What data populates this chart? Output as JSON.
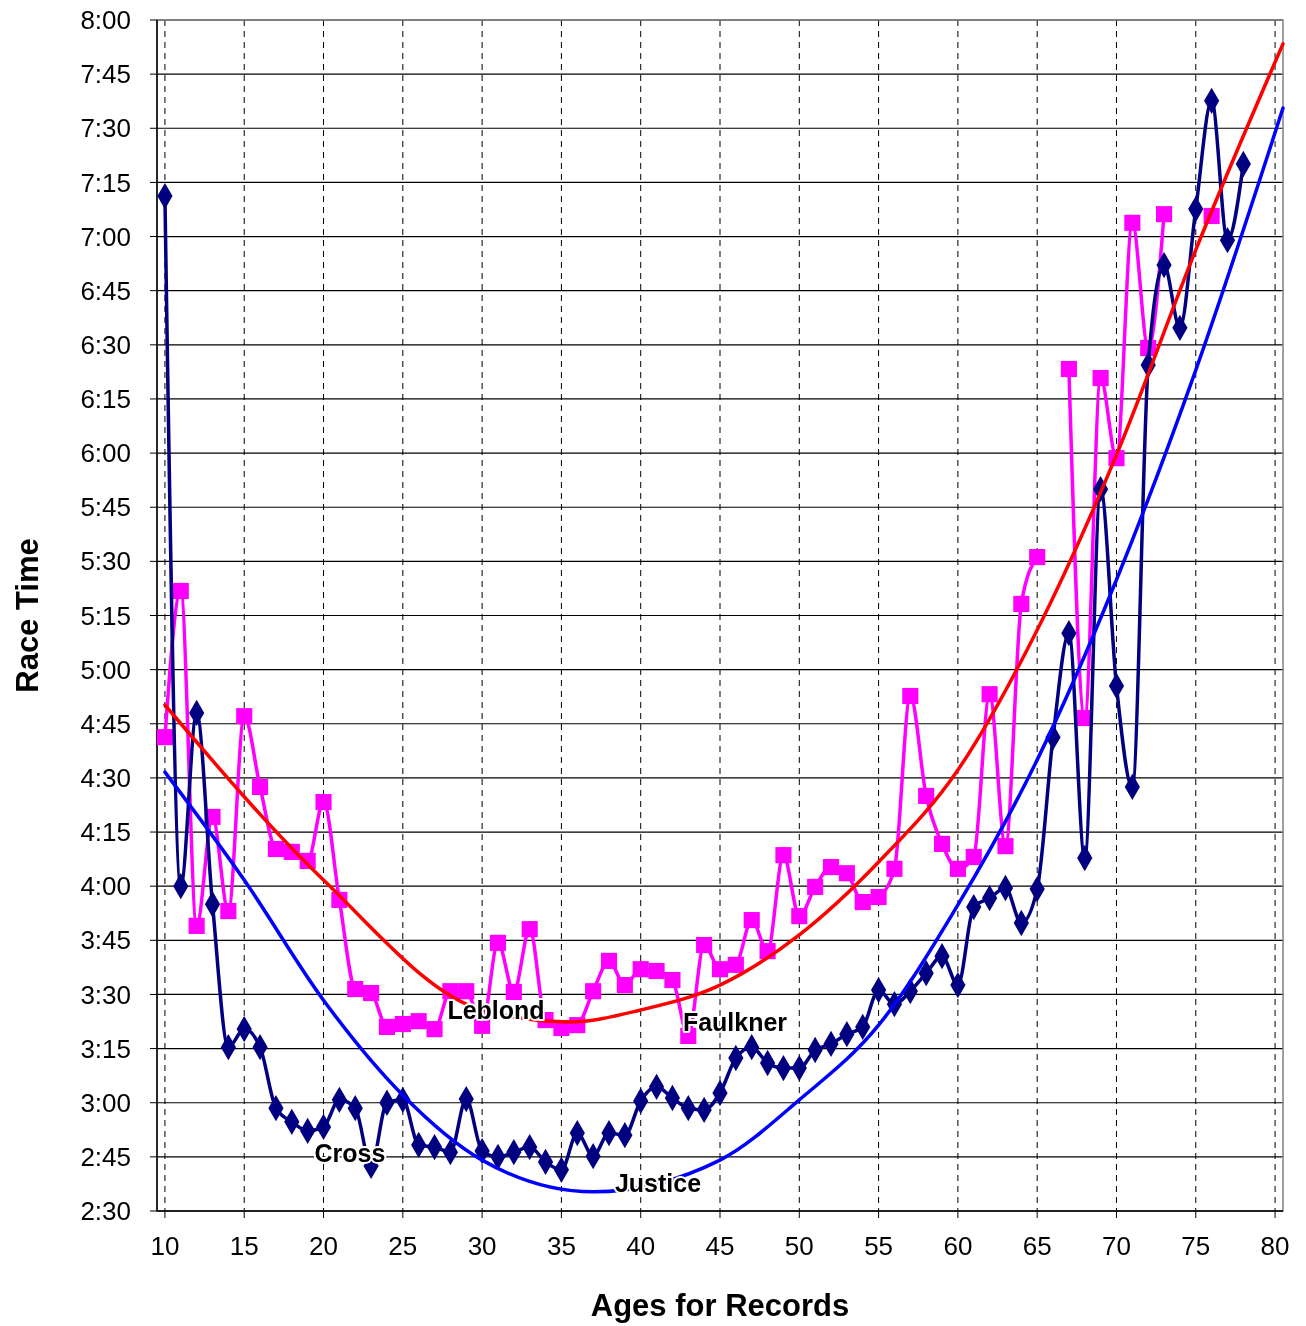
{
  "chart_data": {
    "type": "line",
    "xlabel": "Ages for Records",
    "ylabel": "Race Time",
    "xlim": [
      9.5,
      80.5
    ],
    "xticks": [
      10,
      15,
      20,
      25,
      30,
      35,
      40,
      45,
      50,
      55,
      60,
      65,
      70,
      75,
      80
    ],
    "ylim": [
      150,
      480
    ],
    "yticks": [
      {
        "value": 150,
        "label": "2:30"
      },
      {
        "value": 165,
        "label": "2:45"
      },
      {
        "value": 180,
        "label": "3:00"
      },
      {
        "value": 195,
        "label": "3:15"
      },
      {
        "value": 210,
        "label": "3:30"
      },
      {
        "value": 225,
        "label": "3:45"
      },
      {
        "value": 240,
        "label": "4:00"
      },
      {
        "value": 255,
        "label": "4:15"
      },
      {
        "value": 270,
        "label": "4:30"
      },
      {
        "value": 285,
        "label": "4:45"
      },
      {
        "value": 300,
        "label": "5:00"
      },
      {
        "value": 315,
        "label": "5:15"
      },
      {
        "value": 330,
        "label": "5:30"
      },
      {
        "value": 345,
        "label": "5:45"
      },
      {
        "value": 360,
        "label": "6:00"
      },
      {
        "value": 375,
        "label": "6:15"
      },
      {
        "value": 390,
        "label": "6:30"
      },
      {
        "value": 405,
        "label": "6:45"
      },
      {
        "value": 420,
        "label": "7:00"
      },
      {
        "value": 435,
        "label": "7:15"
      },
      {
        "value": 450,
        "label": "7:30"
      },
      {
        "value": 465,
        "label": "7:45"
      },
      {
        "value": 480,
        "label": "8:00"
      }
    ],
    "grid": true,
    "x": [
      10,
      11,
      12,
      13,
      14,
      15,
      16,
      17,
      18,
      19,
      20,
      21,
      22,
      23,
      24,
      25,
      26,
      27,
      28,
      29,
      30,
      31,
      32,
      33,
      34,
      35,
      36,
      37,
      38,
      39,
      40,
      41,
      42,
      43,
      44,
      45,
      46,
      47,
      48,
      49,
      50,
      51,
      52,
      53,
      54,
      55,
      56,
      57,
      58,
      59,
      60,
      61,
      62,
      63,
      64,
      65,
      66,
      67,
      68,
      69,
      70,
      71,
      72,
      73,
      74,
      75,
      76,
      77,
      78
    ],
    "series": [
      {
        "color": "#ff00ff",
        "marker": "square",
        "line_style": "solid",
        "values": [
          281.3,
          321.8,
          229,
          259.2,
          233.1,
          287.1,
          267.5,
          250.3,
          249.5,
          247,
          263.3,
          236.2,
          211.5,
          210.4,
          201,
          201.8,
          202.6,
          200.4,
          210.9,
          210.9,
          201.3,
          224.3,
          210.7,
          228.1,
          202.9,
          200.7,
          201.5,
          210.9,
          219.3,
          212.6,
          217,
          216.5,
          214,
          198.5,
          223.7,
          217,
          218.2,
          230.6,
          222,
          248.6,
          231.7,
          239.8,
          245.3,
          243.6,
          235.6,
          237,
          244.8,
          292.7,
          265,
          251.7,
          244.8,
          248.1,
          293.2,
          251.1,
          318.2,
          331.2,
          null,
          383.3,
          286.6,
          380.8,
          358.6,
          423.8,
          389.1,
          426.2,
          null,
          null,
          425.7,
          null,
          null
        ]
      },
      {
        "color": "#000080",
        "marker": "diamond",
        "line_style": "solid",
        "values": [
          431.2,
          240,
          288,
          235,
          195.4,
          200.4,
          195.4,
          178.5,
          174.7,
          172.2,
          173.3,
          180.8,
          178.5,
          162.5,
          180,
          180.8,
          168.3,
          167.7,
          166.3,
          181,
          166.6,
          165,
          166.3,
          167.7,
          163.6,
          161.4,
          171.6,
          165.2,
          171.6,
          171,
          180.5,
          184.4,
          181.3,
          178.5,
          178,
          182.7,
          192.4,
          195.4,
          191,
          189.6,
          189.6,
          194.6,
          196.3,
          199,
          201,
          211.2,
          207.3,
          210.9,
          215.9,
          220.6,
          212.6,
          234.2,
          236.7,
          239.5,
          229.8,
          239.2,
          281.3,
          310.1,
          247.8,
          350,
          295.5,
          267.5,
          384.4,
          412.1,
          394.7,
          427.6,
          457.6,
          419,
          440.1
        ]
      },
      {
        "color": "#ff0000",
        "marker": "none",
        "line_style": "solid",
        "x": [
          10,
          20,
          30,
          35.5,
          40,
          45,
          50,
          55,
          60,
          65,
          70,
          75,
          80.5
        ],
        "values": [
          290.2,
          241.7,
          205.7,
          202.4,
          205.7,
          212.6,
          226.5,
          246.7,
          272.2,
          311,
          359.5,
          416.3,
          473.4
        ]
      },
      {
        "color": "#0000ff",
        "marker": "none",
        "line_style": "solid",
        "x": [
          10,
          15,
          20,
          25,
          30,
          37,
          45,
          50,
          55,
          60,
          65,
          70,
          75,
          80.5
        ],
        "values": [
          271.6,
          241.7,
          208.4,
          182.1,
          164.1,
          155.3,
          164.1,
          180.8,
          201.5,
          234.8,
          275,
          324.9,
          383,
          455.6
        ]
      }
    ],
    "annotations": [
      "Leblond",
      "Faulkner",
      "Cross",
      "Justice"
    ]
  }
}
